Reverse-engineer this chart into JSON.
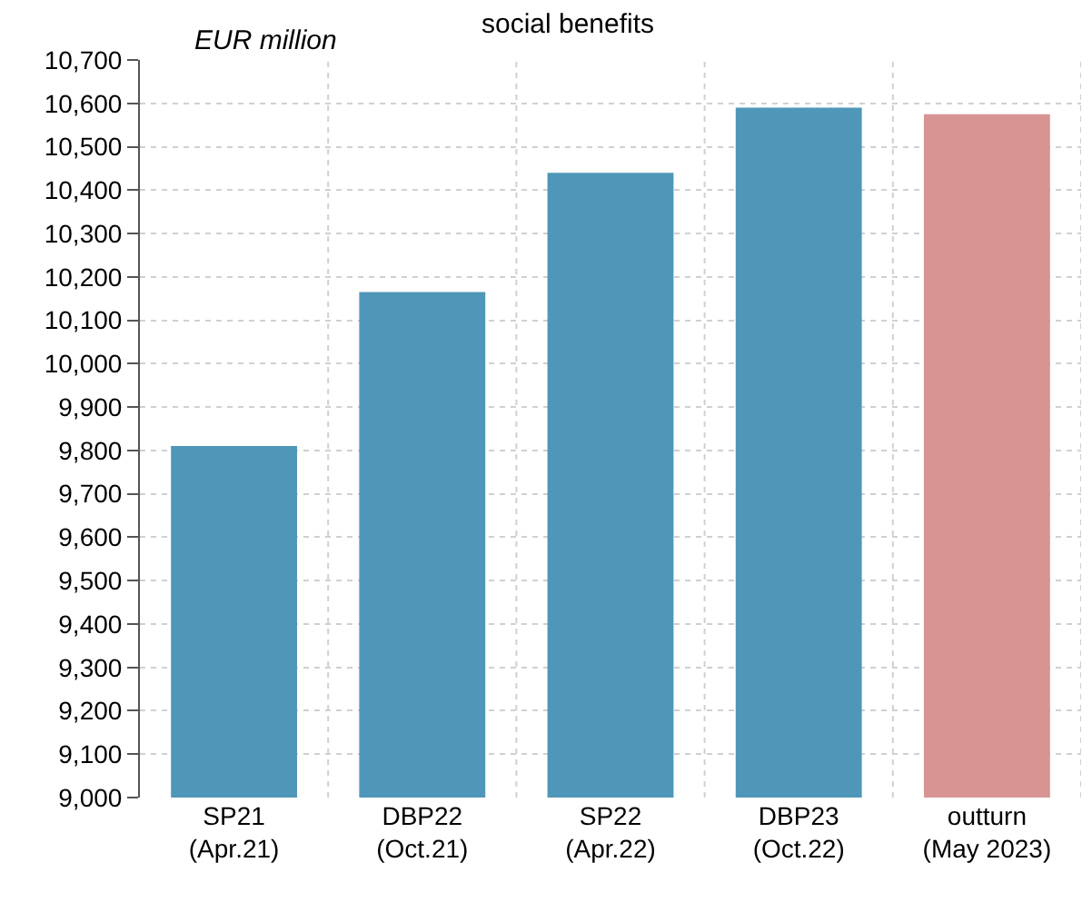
{
  "chart_data": {
    "type": "bar",
    "title": "social benefits",
    "ylabel": "EUR million",
    "categories": [
      "SP21\n(Apr.21)",
      "DBP22\n(Oct.21)",
      "SP22\n(Apr.22)",
      "DBP23\n(Oct.22)",
      "outturn\n(May 2023)"
    ],
    "values": [
      9810,
      10165,
      10440,
      10590,
      10575
    ],
    "colors": [
      "#4f97b8",
      "#4f97b8",
      "#4f97b8",
      "#4f97b8",
      "#d89393"
    ],
    "ylim": [
      9000,
      10700
    ],
    "yticks": [
      {
        "value": 9000,
        "label": "9,000"
      },
      {
        "value": 9100,
        "label": "9,100"
      },
      {
        "value": 9200,
        "label": "9,200"
      },
      {
        "value": 9300,
        "label": "9,300"
      },
      {
        "value": 9400,
        "label": "9,400"
      },
      {
        "value": 9500,
        "label": "9,500"
      },
      {
        "value": 9600,
        "label": "9,600"
      },
      {
        "value": 9700,
        "label": "9,700"
      },
      {
        "value": 9800,
        "label": "9,800"
      },
      {
        "value": 9900,
        "label": "9,900"
      },
      {
        "value": 10000,
        "label": "10,000"
      },
      {
        "value": 10100,
        "label": "10,100"
      },
      {
        "value": 10200,
        "label": "10,200"
      },
      {
        "value": 10300,
        "label": "10,300"
      },
      {
        "value": 10400,
        "label": "10,400"
      },
      {
        "value": 10500,
        "label": "10,500"
      },
      {
        "value": 10600,
        "label": "10,600"
      },
      {
        "value": 10700,
        "label": "10,700"
      }
    ],
    "grid": true
  }
}
